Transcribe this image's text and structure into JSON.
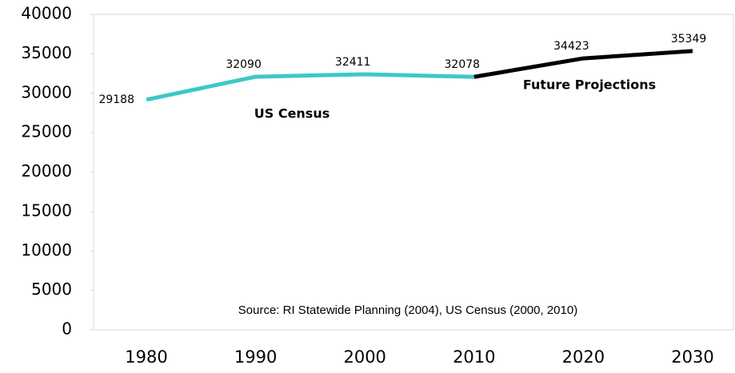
{
  "chart_data": {
    "type": "line",
    "categories": [
      "1980",
      "1990",
      "2000",
      "2010",
      "2020",
      "2030"
    ],
    "series": [
      {
        "name": "US Census",
        "color": "#3cc8c8",
        "values": [
          29188,
          32090,
          32411,
          32078,
          null,
          null
        ]
      },
      {
        "name": "Future Projections",
        "color": "#000000",
        "values": [
          null,
          null,
          null,
          32078,
          34423,
          35349
        ]
      }
    ],
    "ylim": [
      0,
      40000
    ],
    "yticks": [
      0,
      5000,
      10000,
      15000,
      20000,
      25000,
      30000,
      35000,
      40000
    ],
    "source": "Source: RI Statewide Planning (2004), US Census (2000, 2010)"
  }
}
